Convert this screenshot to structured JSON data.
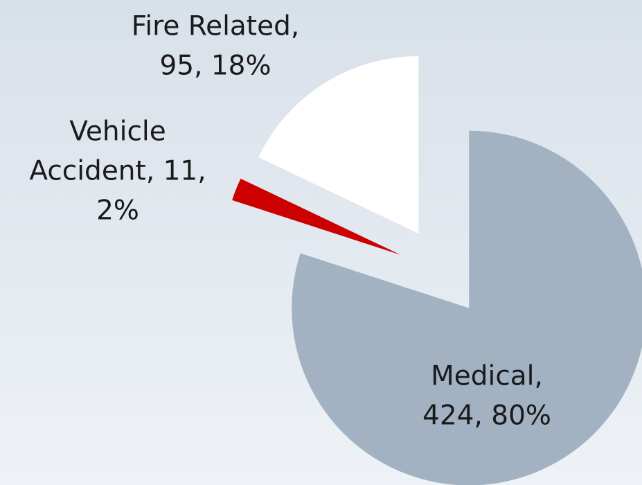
{
  "chart_data": {
    "type": "pie",
    "values": [
      424,
      11,
      95
    ],
    "value_labels": [
      [
        "Medical,",
        "424, 80%"
      ],
      [
        "Vehicle",
        "Accident, 11,",
        "2%"
      ],
      [
        "Fire Related,",
        "95, 18%"
      ]
    ],
    "colors": [
      "#a2b2c2",
      "#cc0000",
      "#ffffff"
    ],
    "start_angle": 0,
    "direction": "clockwise",
    "exploded": true
  }
}
